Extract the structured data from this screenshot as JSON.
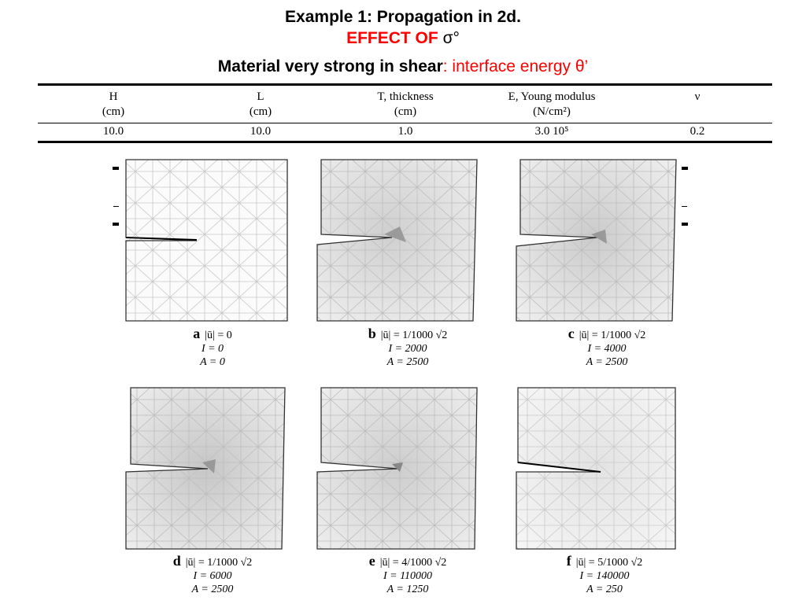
{
  "title": {
    "line1": "Example 1: Propagation in 2d.",
    "line2_red": "EFFECT OF",
    "line2_symbol": "σ°",
    "line3_black": "Material very strong in shear",
    "line3_red": ": interface energy θ’"
  },
  "table": {
    "headers": [
      {
        "name": "H",
        "unit": "(cm)"
      },
      {
        "name": "L",
        "unit": "(cm)"
      },
      {
        "name": "T, thickness",
        "unit": "(cm)"
      },
      {
        "name": "E, Young modulus",
        "unit": "(N/cm²)"
      },
      {
        "name": "ν",
        "unit": ""
      }
    ],
    "values": [
      "10.0",
      "10.0",
      "1.0",
      "3.0 10⁵",
      "0.2"
    ]
  },
  "panels": [
    {
      "label": "a",
      "u": "|ū| = 0",
      "I": "I = 0",
      "A": "A = 0"
    },
    {
      "label": "b",
      "u": "|ū| = 1/1000 √2",
      "I": "I = 2000",
      "A": "A = 2500"
    },
    {
      "label": "c",
      "u": "|ū| = 1/1000 √2",
      "I": "I = 4000",
      "A": "A = 2500"
    },
    {
      "label": "d",
      "u": "|ū| = 1/1000 √2",
      "I": "I = 6000",
      "A": "A = 2500"
    },
    {
      "label": "e",
      "u": "|ū| = 4/1000 √2",
      "I": "I = 110000",
      "A": "A = 1250"
    },
    {
      "label": "f",
      "u": "|ū| = 5/1000 √2",
      "I": "I = 140000",
      "A": "A = 250"
    }
  ]
}
